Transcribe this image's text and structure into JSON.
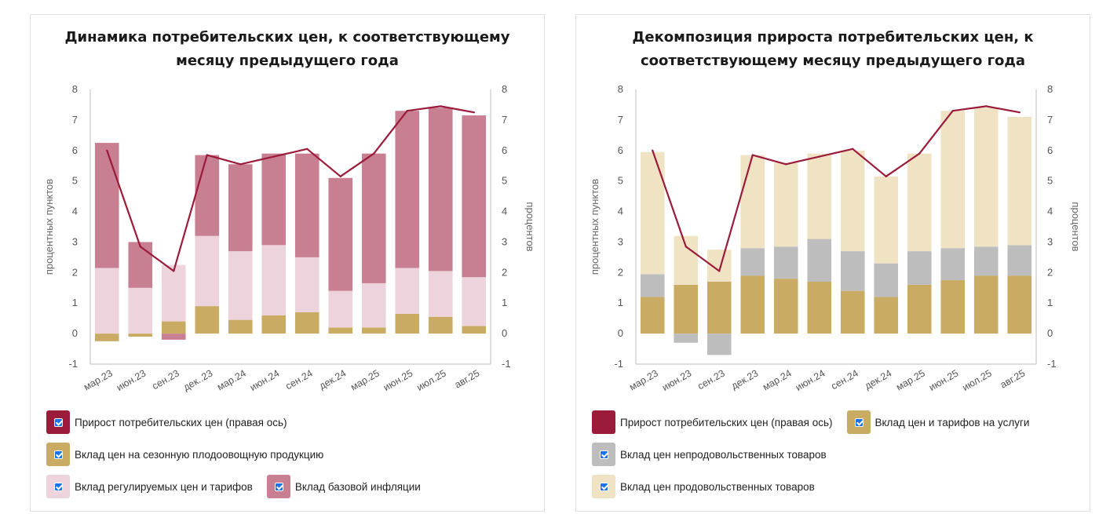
{
  "chart_data": [
    {
      "type": "bar",
      "stacked": true,
      "title": "Динамика потребительских цен, к соответствующему месяцу предыдущего года",
      "title_lines": [
        "Динамика потребительских цен, к соответствующему",
        "месяцу предыдущего года"
      ],
      "ylabel_left": "процентных пунктов",
      "ylabel_right": "процентов",
      "ylim": [
        -1,
        8
      ],
      "yticks": [
        -1,
        0,
        1,
        2,
        3,
        4,
        5,
        6,
        7,
        8
      ],
      "categories": [
        "мар.23",
        "июн.23",
        "сен.23",
        "дек..23",
        "мар.24",
        "июн.24",
        "сен.24",
        "дек.24",
        "мар.25",
        "июн.25",
        "июл.25",
        "авг.25"
      ],
      "series": [
        {
          "name": "Вклад цен на сезонную плодоовощную продукцию",
          "color": "#c9ab63",
          "values": [
            -0.25,
            -0.1,
            0.4,
            0.9,
            0.45,
            0.6,
            0.7,
            0.2,
            0.2,
            0.65,
            0.55,
            0.25
          ]
        },
        {
          "name": "Вклад регулируемых цен и тарифов",
          "color": "#ecd3dc",
          "values": [
            2.15,
            1.5,
            1.85,
            2.3,
            2.25,
            2.3,
            1.8,
            1.2,
            1.45,
            1.5,
            1.5,
            1.6
          ]
        },
        {
          "name": "Вклад базовой инфляции",
          "color": "#c97f92",
          "values": [
            4.1,
            1.5,
            -0.2,
            2.65,
            2.85,
            3.0,
            3.4,
            3.7,
            4.25,
            5.15,
            5.35,
            5.3
          ]
        }
      ],
      "line": {
        "name": "Прирост потребительских цен (правая ось)",
        "color": "#9b1b3b",
        "values": [
          6.0,
          2.85,
          2.05,
          5.85,
          5.55,
          5.8,
          6.05,
          5.15,
          5.9,
          7.3,
          7.45,
          7.25
        ]
      },
      "legend_rows": [
        [
          {
            "name": "Прирост потребительских цен (правая ось)",
            "color": "#9b1b3b",
            "check": true
          }
        ],
        [
          {
            "name": "Вклад цен на сезонную плодоовощную продукцию",
            "color": "#c9ab63",
            "check": true
          }
        ],
        [
          {
            "name": "Вклад регулируемых цен и тарифов",
            "color": "#ecd3dc",
            "check": true
          },
          {
            "name": "Вклад базовой инфляции",
            "color": "#c97f92",
            "check": true
          }
        ]
      ]
    },
    {
      "type": "bar",
      "stacked": true,
      "title": "Декомпозиция прироста потребительских цен, к соответствующему месяцу предыдущего года",
      "title_lines": [
        "Декомпозиция прироста потребительских цен, к",
        "соответствующему месяцу предыдущего года"
      ],
      "ylabel_left": "процентных пунктов",
      "ylabel_right": "процентов",
      "ylim": [
        -1,
        8
      ],
      "yticks": [
        -1,
        0,
        1,
        2,
        3,
        4,
        5,
        6,
        7,
        8
      ],
      "categories": [
        "мар.23",
        "июн.23",
        "сен.23",
        "дек.23",
        "мар.24",
        "июн.24",
        "сен.24",
        "дек.24",
        "мар.25",
        "июн.25",
        "июл.25",
        "авг.25"
      ],
      "series": [
        {
          "name": "Вклад цен и тарифов на услуги",
          "color": "#c9ab63",
          "values": [
            1.2,
            1.6,
            1.7,
            1.9,
            1.8,
            1.7,
            1.4,
            1.2,
            1.6,
            1.75,
            1.9,
            1.9
          ]
        },
        {
          "name": "Вклад цен непродовольственных товаров",
          "color": "#bdbdbd",
          "values": [
            0.75,
            -0.3,
            -0.7,
            0.9,
            1.05,
            1.4,
            1.3,
            1.1,
            1.1,
            1.05,
            0.95,
            1.0
          ]
        },
        {
          "name": "Вклад цен продовольственных товаров",
          "color": "#efe3c4",
          "values": [
            4.0,
            1.6,
            1.05,
            3.05,
            2.75,
            2.8,
            3.3,
            2.85,
            3.2,
            4.5,
            4.55,
            4.2
          ]
        }
      ],
      "line": {
        "name": "Прирост потребительских цен (правая ось)",
        "color": "#9b1b3b",
        "values": [
          6.0,
          2.85,
          2.05,
          5.85,
          5.55,
          5.8,
          6.05,
          5.15,
          5.9,
          7.3,
          7.45,
          7.25
        ]
      },
      "legend_rows": [
        [
          {
            "name": "Прирост потребительских цен (правая ось)",
            "color": "#9b1b3b",
            "check": false
          },
          {
            "name": "Вклад цен и тарифов на услуги",
            "color": "#c9ab63",
            "check": true
          }
        ],
        [
          {
            "name": "Вклад цен непродовольственных товаров",
            "color": "#bdbdbd",
            "check": true
          }
        ],
        [
          {
            "name": "Вклад цен продовольственных товаров",
            "color": "#efe3c4",
            "check": true
          }
        ]
      ]
    }
  ]
}
